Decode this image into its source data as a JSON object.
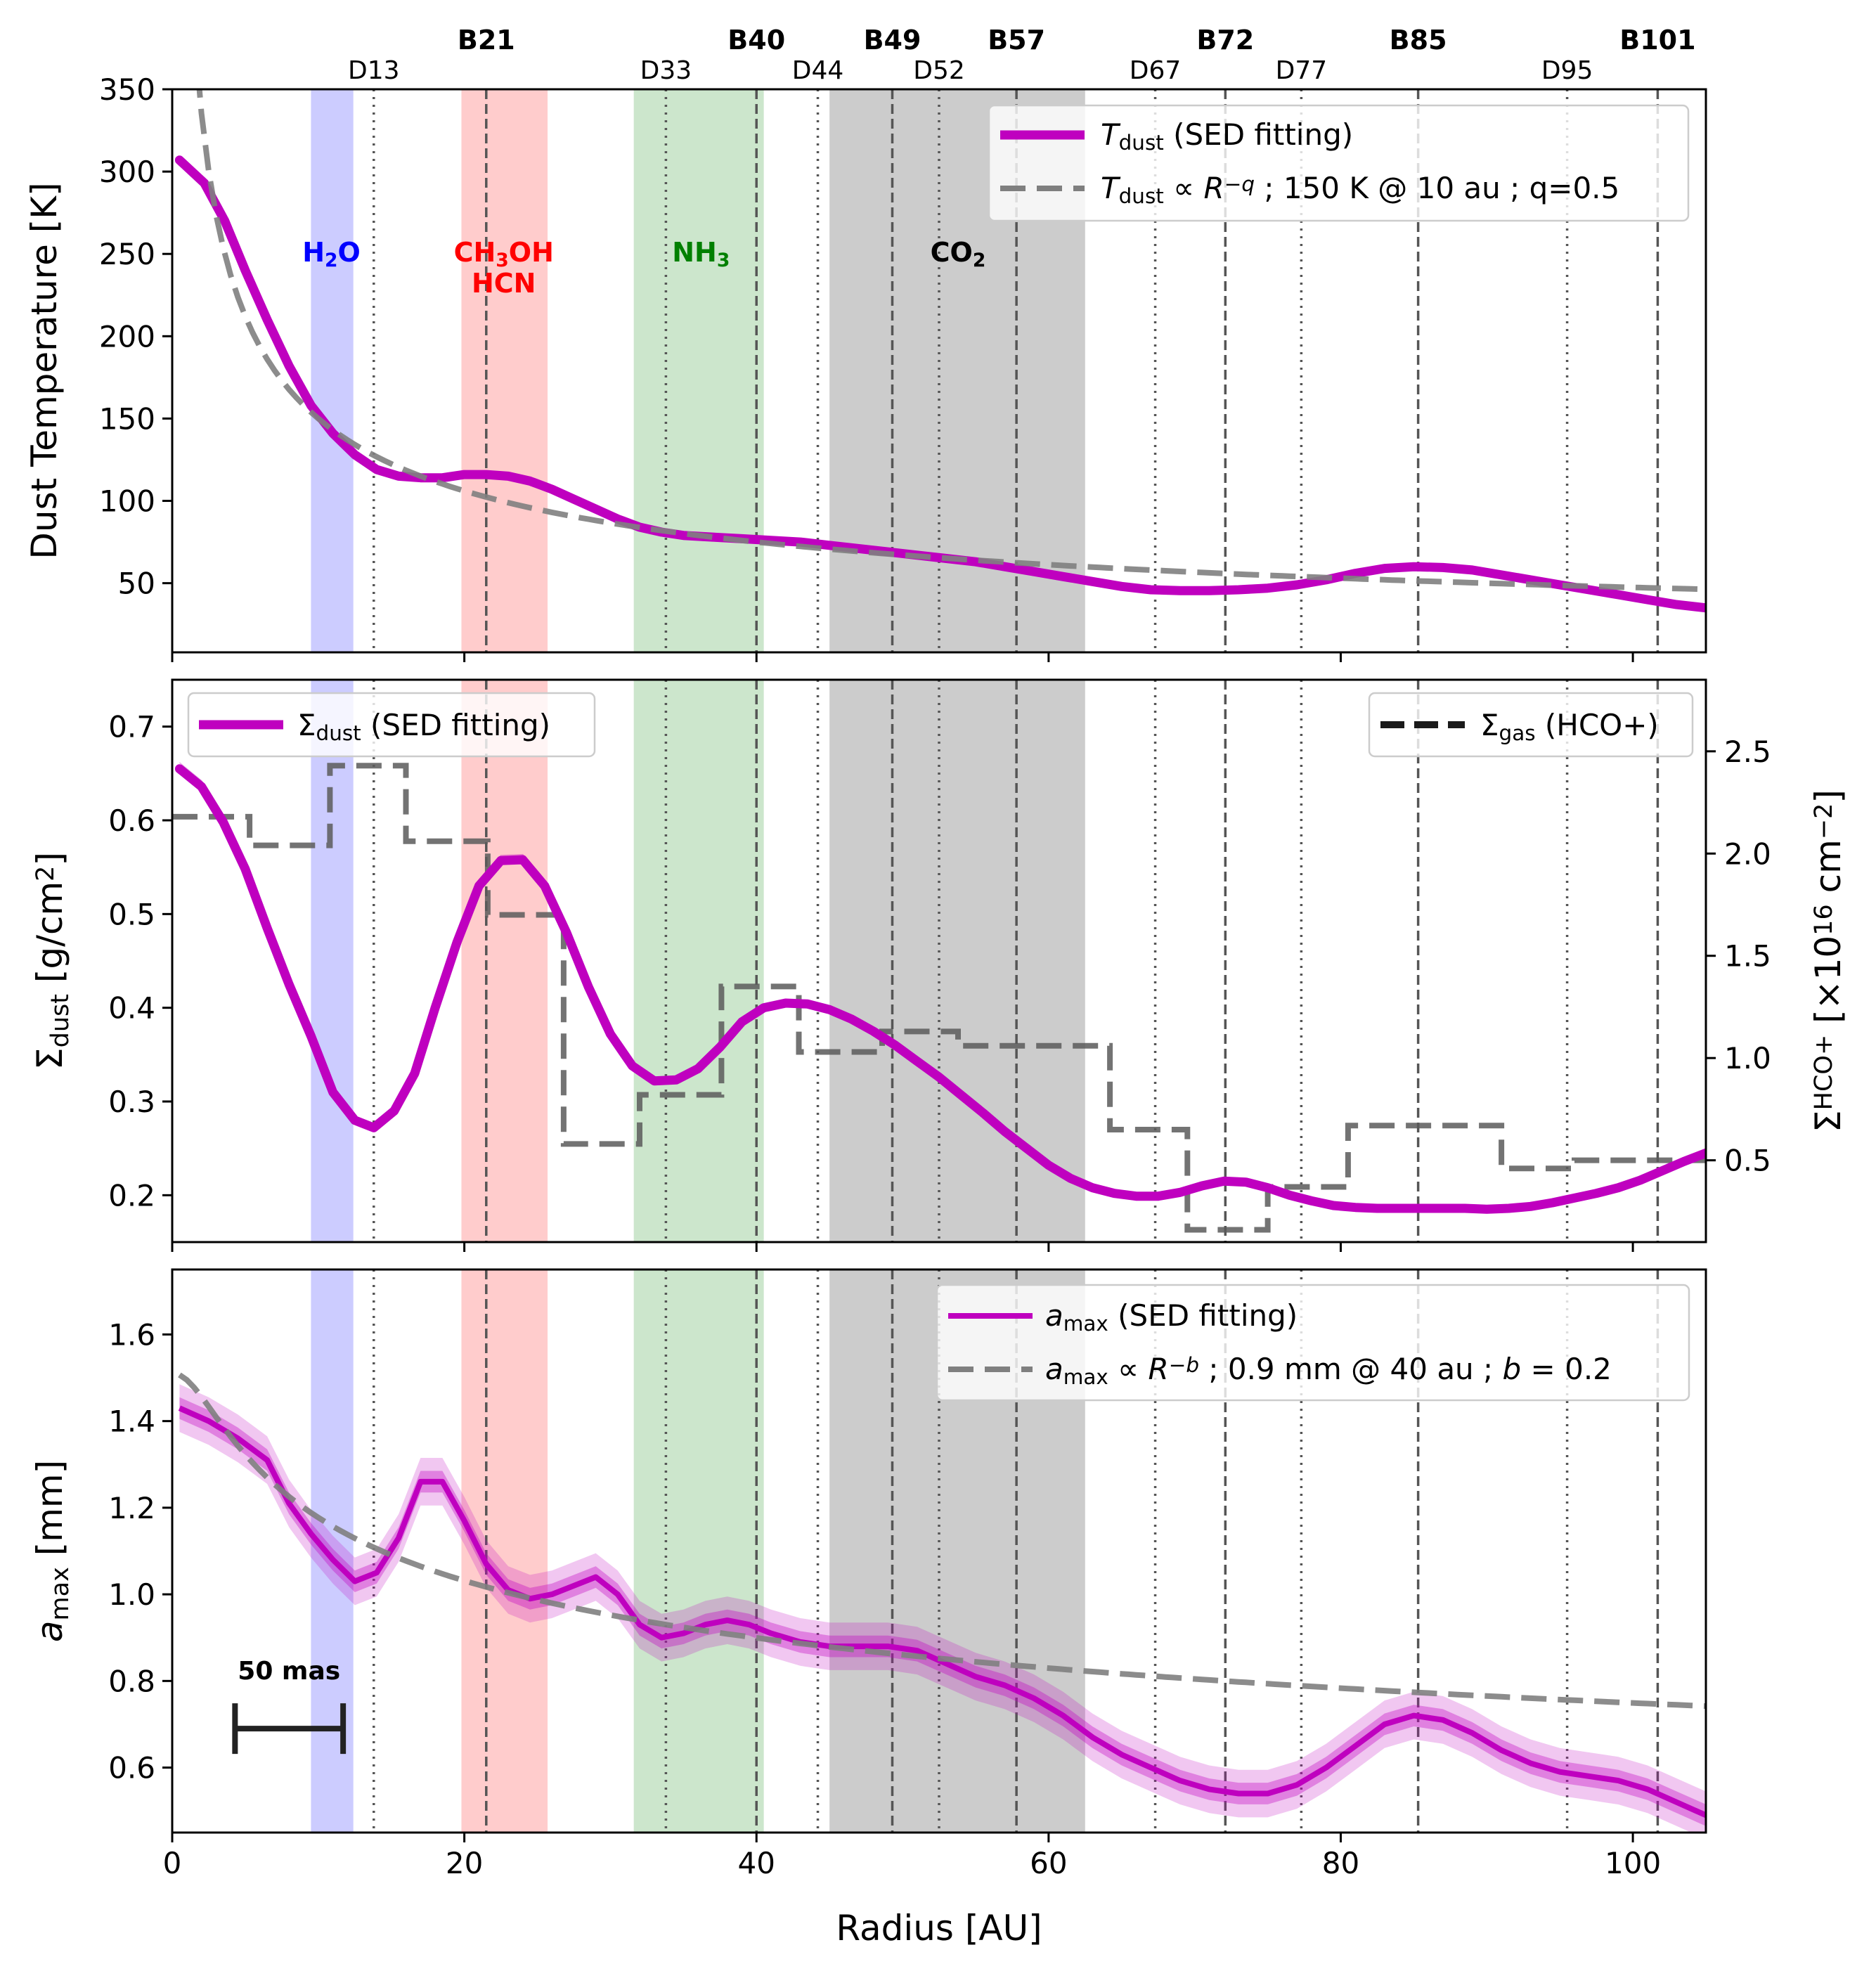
{
  "chart_data": [
    {
      "type": "line",
      "panel": "top",
      "ylabel": "Dust Temperature [K]",
      "xlim": [
        0,
        105
      ],
      "ylim": [
        8,
        350
      ],
      "yticks": [
        50,
        100,
        150,
        200,
        250,
        300,
        350
      ],
      "series": [
        {
          "name": "T_dust (SED fitting)",
          "color": "#bf00bf",
          "x": [
            0.5,
            2.2,
            3.6,
            5,
            6.5,
            8,
            9.5,
            11,
            12.5,
            14,
            15.5,
            17,
            18.5,
            20,
            21.5,
            23,
            24.5,
            26,
            27.5,
            29,
            30.5,
            32,
            33.5,
            35,
            37,
            39,
            41,
            43,
            45,
            47,
            49,
            51,
            53,
            55,
            57,
            59,
            61,
            63,
            65,
            67,
            69,
            71,
            73,
            75,
            77,
            79,
            81,
            83,
            85,
            87,
            89,
            91,
            93,
            95,
            97,
            99,
            101,
            103,
            105
          ],
          "y": [
            307,
            293,
            270,
            240,
            210,
            182,
            158,
            141,
            128,
            119,
            115,
            114,
            114,
            116,
            116,
            115,
            112,
            107,
            101,
            95,
            89,
            84,
            81,
            79,
            78,
            77,
            76,
            75,
            73,
            71,
            69,
            67,
            65,
            63,
            60,
            57,
            54,
            51,
            48,
            46,
            45.5,
            45.5,
            46,
            47,
            49,
            52,
            56,
            59,
            60,
            59.5,
            58,
            55,
            52,
            49,
            46,
            43,
            40,
            37,
            35
          ]
        },
        {
          "name": "T_dust ∝ R^-q ; 150 K @ 10 au ; q=0.5",
          "color": "#7f7f7f",
          "dashed": true,
          "model": {
            "form": "power",
            "ref_x": 10,
            "ref_y": 150,
            "exponent": -0.5,
            "x_from": 0.5
          }
        }
      ],
      "legend": "top-right"
    },
    {
      "type": "line",
      "panel": "middle",
      "ylabel": "Σ_dust [g/cm²]",
      "ylabel_right": "Σ_gas^HCO+ [×10^16 cm^-2]",
      "xlim": [
        0,
        105
      ],
      "ylim": [
        0.15,
        0.75
      ],
      "yticks": [
        0.2,
        0.3,
        0.4,
        0.5,
        0.6,
        0.7
      ],
      "ylim_right": [
        0.1,
        2.85
      ],
      "yticks_right": [
        0.5,
        1.0,
        1.5,
        2.0,
        2.5
      ],
      "series": [
        {
          "name": "Σ_dust (SED fitting)",
          "color": "#bf00bf",
          "axis": "left",
          "x": [
            0.5,
            2,
            3.5,
            5,
            6.5,
            8,
            9.5,
            11,
            12.5,
            13.8,
            15.2,
            16.6,
            18,
            19.5,
            21,
            22.5,
            24,
            25.5,
            27,
            28.5,
            30,
            31.5,
            33,
            34.5,
            36,
            37.5,
            39,
            40.5,
            42,
            43.5,
            45,
            46.5,
            48,
            49.5,
            51,
            52.5,
            54,
            55.5,
            57,
            58.5,
            60,
            61.5,
            63,
            64.5,
            66,
            67.5,
            69,
            70.5,
            72,
            73.5,
            75,
            76.5,
            78,
            79.5,
            81,
            82.5,
            84,
            85.5,
            87,
            88.5,
            90,
            91.5,
            93,
            94.5,
            96,
            97.5,
            99,
            100.5,
            102,
            103.5,
            105
          ],
          "y": [
            0.655,
            0.636,
            0.598,
            0.548,
            0.485,
            0.425,
            0.37,
            0.31,
            0.28,
            0.272,
            0.29,
            0.33,
            0.4,
            0.47,
            0.53,
            0.557,
            0.558,
            0.53,
            0.48,
            0.422,
            0.372,
            0.338,
            0.322,
            0.323,
            0.335,
            0.358,
            0.385,
            0.4,
            0.405,
            0.404,
            0.398,
            0.388,
            0.375,
            0.36,
            0.343,
            0.326,
            0.307,
            0.288,
            0.268,
            0.25,
            0.232,
            0.218,
            0.208,
            0.202,
            0.199,
            0.199,
            0.203,
            0.21,
            0.215,
            0.214,
            0.208,
            0.2,
            0.194,
            0.189,
            0.187,
            0.186,
            0.186,
            0.186,
            0.186,
            0.186,
            0.185,
            0.186,
            0.188,
            0.192,
            0.197,
            0.202,
            0.208,
            0.216,
            0.226,
            0.236,
            0.245
          ]
        },
        {
          "name": "Σ_gas (HCO+)",
          "color": "#5a5a5a",
          "axis": "right",
          "dashed": true,
          "step": true,
          "x": [
            0,
            5.3,
            5.3,
            10.8,
            10.8,
            16,
            16,
            21.6,
            21.6,
            26.8,
            26.8,
            32,
            32,
            37.6,
            37.6,
            42.9,
            42.9,
            48.6,
            48.6,
            53.8,
            53.8,
            64.2,
            64.2,
            69.5,
            69.5,
            75,
            75,
            80.5,
            80.5,
            91,
            91,
            96,
            96,
            105
          ],
          "y": [
            2.18,
            2.18,
            2.04,
            2.04,
            2.43,
            2.43,
            2.06,
            2.06,
            1.7,
            1.7,
            0.58,
            0.58,
            0.82,
            0.82,
            1.35,
            1.35,
            1.03,
            1.03,
            1.13,
            1.13,
            1.06,
            1.06,
            0.65,
            0.65,
            0.16,
            0.16,
            0.37,
            0.37,
            0.67,
            0.67,
            0.46,
            0.46,
            0.5,
            0.5
          ]
        }
      ],
      "legend": "top-left / top-right"
    },
    {
      "type": "line",
      "panel": "bottom",
      "ylabel": "a_max [mm]",
      "xlabel": "Radius [AU]",
      "xlim": [
        0,
        105
      ],
      "ylim": [
        0.45,
        1.75
      ],
      "yticks": [
        0.6,
        0.8,
        1.0,
        1.2,
        1.4,
        1.6
      ],
      "xticks": [
        0,
        20,
        40,
        60,
        80,
        100
      ],
      "series": [
        {
          "name": "a_max (SED fitting)",
          "color": "#bf00bf",
          "x": [
            0.5,
            2.5,
            4.5,
            6.5,
            8,
            9.5,
            11,
            12.5,
            14,
            15.5,
            17,
            18.5,
            20,
            21.5,
            23,
            24.5,
            26,
            27.5,
            29,
            30.5,
            32,
            33.5,
            35,
            36.5,
            38,
            39.5,
            41,
            43,
            45,
            47,
            49,
            51,
            53,
            55,
            57,
            59,
            61,
            63,
            65,
            67,
            69,
            71,
            73,
            75,
            77,
            79,
            81,
            83,
            85,
            87,
            89,
            91,
            93,
            95,
            97,
            99,
            101,
            103,
            105
          ],
          "y": [
            1.43,
            1.4,
            1.36,
            1.31,
            1.21,
            1.14,
            1.08,
            1.03,
            1.05,
            1.13,
            1.26,
            1.26,
            1.17,
            1.07,
            1.01,
            0.99,
            1.0,
            1.02,
            1.04,
            1.0,
            0.93,
            0.9,
            0.91,
            0.93,
            0.94,
            0.93,
            0.91,
            0.89,
            0.88,
            0.88,
            0.88,
            0.87,
            0.84,
            0.81,
            0.79,
            0.76,
            0.72,
            0.67,
            0.63,
            0.6,
            0.57,
            0.55,
            0.54,
            0.54,
            0.56,
            0.6,
            0.65,
            0.7,
            0.72,
            0.71,
            0.68,
            0.64,
            0.61,
            0.59,
            0.58,
            0.57,
            0.55,
            0.52,
            0.49
          ],
          "band_inner": 0.025,
          "band_outer": 0.055
        },
        {
          "name": "a_max ∝ R^-b ; 0.9 mm @ 40 au ; b = 0.2",
          "color": "#7f7f7f",
          "dashed": true,
          "model": {
            "form": "power_smoothed",
            "ref_x": 40,
            "ref_y": 0.9,
            "exponent": -0.2,
            "x_from": 0.5
          }
        }
      ],
      "legend": "top-right",
      "annotations": [
        "50 mas"
      ]
    }
  ],
  "snowlines": [
    {
      "name": "water",
      "x0": 9.5,
      "x1": 12.4,
      "color": "#0000ff",
      "label_parts": [
        "H",
        "2",
        "O"
      ]
    },
    {
      "name": "methanol-hcn",
      "x0": 19.8,
      "x1": 25.7,
      "color": "#ff0000",
      "label_parts": [
        "CH",
        "3",
        "OH"
      ],
      "label_line2": "HCN"
    },
    {
      "name": "ammonia",
      "x0": 31.6,
      "x1": 40.5,
      "color": "#008000",
      "label_parts": [
        "NH",
        "3",
        ""
      ]
    },
    {
      "name": "co2",
      "x0": 45,
      "x1": 62.5,
      "color": "#808080",
      "label_parts": [
        "CO",
        "2",
        ""
      ]
    }
  ],
  "gaps": [
    {
      "label": "D13",
      "x": 13.8
    },
    {
      "label": "D33",
      "x": 33.8
    },
    {
      "label": "D44",
      "x": 44.2
    },
    {
      "label": "D52",
      "x": 52.5
    },
    {
      "label": "D67",
      "x": 67.3
    },
    {
      "label": "D77",
      "x": 77.3
    },
    {
      "label": "D95",
      "x": 95.5
    }
  ],
  "rings": [
    {
      "label": "B21",
      "x": 21.5
    },
    {
      "label": "B40",
      "x": 40.0
    },
    {
      "label": "B49",
      "x": 49.3
    },
    {
      "label": "B57",
      "x": 57.8
    },
    {
      "label": "B72",
      "x": 72.1
    },
    {
      "label": "B85",
      "x": 85.3
    },
    {
      "label": "B101",
      "x": 101.7
    }
  ],
  "legends": {
    "top_item1": {
      "sym": "T",
      "sub": "dust",
      "rest": " (SED fitting)"
    },
    "top_item2": {
      "sym": "T",
      "sub": "dust",
      "rest": " ∝ R",
      "sup": "−q",
      "tail": " ; 150 K @ 10 au ; q=0.5"
    },
    "mid_left": {
      "sym": "Σ",
      "sub": "dust",
      "rest": " (SED fitting)"
    },
    "mid_right": {
      "sym": "Σ",
      "sub": "gas",
      "rest": " (HCO+)"
    },
    "bot_item1": {
      "sym": "a",
      "sub": "max",
      "rest": " (SED fitting)"
    },
    "bot_item2": {
      "sym": "a",
      "sub": "max",
      "rest": " ∝ R",
      "sup": "−b",
      "tail": " ; 0.9 mm @ 40 au ; ",
      "b": "b",
      "tail2": " = 0.2"
    }
  },
  "axis_titles": {
    "top_y": "Dust Temperature [K]",
    "mid_y": {
      "sym": "Σ",
      "sub": "dust",
      "rest": " [g/cm",
      "sup": "2",
      "end": "]"
    },
    "mid_y2": {
      "sym": "Σ",
      "sub": "gas",
      "sup": "HCO+",
      "rest": "  [×10",
      "sup2": "16",
      "rest2": " cm",
      "sup3": "−2",
      "end": "]"
    },
    "bot_y": {
      "sym": "a",
      "sub": "max",
      "rest": " [mm]"
    },
    "x": "Radius [AU]"
  },
  "scalebar": {
    "label": "50 mas",
    "x0": 4.3,
    "x1": 11.7,
    "y": 0.69
  },
  "colors": {
    "magenta": "#bf00bf",
    "model_gray": "#7f7f7f",
    "line_gray": "#555555"
  }
}
